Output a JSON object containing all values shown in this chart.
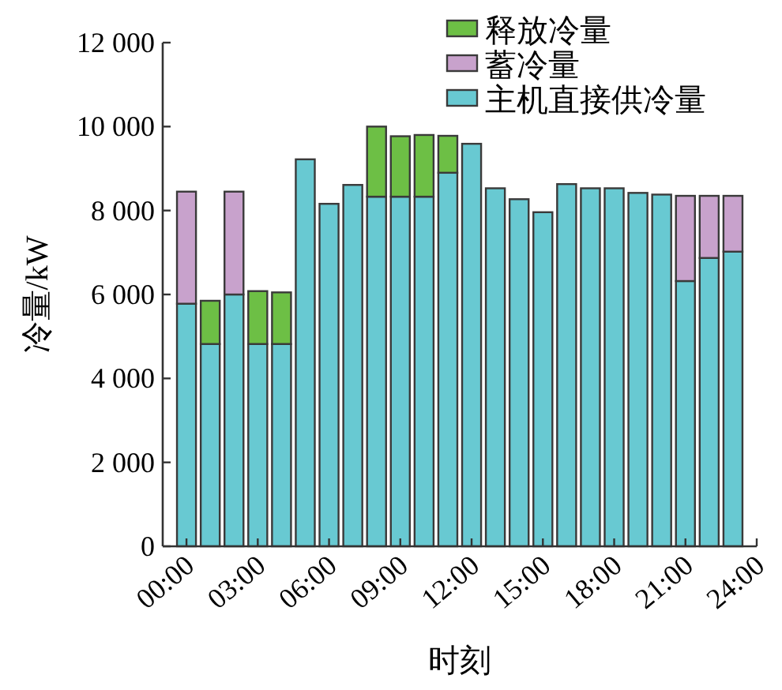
{
  "chart_data": {
    "type": "bar",
    "stacked": true,
    "xlabel": "时刻",
    "ylabel": "冷量/kW",
    "x": [
      0,
      1,
      2,
      3,
      4,
      5,
      6,
      7,
      8,
      9,
      10,
      11,
      12,
      13,
      14,
      15,
      16,
      17,
      18,
      19,
      20,
      21,
      22,
      23
    ],
    "series": [
      {
        "name": "主机直接供冷量",
        "color": "#68c9d2",
        "values": [
          5780,
          4820,
          6000,
          4820,
          4820,
          9220,
          8160,
          8610,
          8330,
          8330,
          8330,
          8900,
          9590,
          8530,
          8270,
          7960,
          8630,
          8530,
          8530,
          8420,
          8380,
          6320,
          6870,
          7020
        ]
      },
      {
        "name": "蓄冷量",
        "color": "#c8a2cc",
        "values": [
          2670,
          null,
          2450,
          null,
          null,
          null,
          null,
          null,
          null,
          null,
          null,
          null,
          null,
          null,
          null,
          null,
          null,
          null,
          null,
          null,
          null,
          2030,
          1480,
          1330
        ]
      },
      {
        "name": "释放冷量",
        "color": "#6dbf45",
        "values": [
          null,
          1030,
          null,
          1260,
          1230,
          null,
          null,
          null,
          1670,
          1440,
          1470,
          880,
          null,
          null,
          null,
          null,
          null,
          null,
          null,
          null,
          null,
          null,
          null,
          null
        ]
      }
    ],
    "xlim": [
      -1,
      24
    ],
    "xticks": [
      {
        "value": 0,
        "label": "00:00"
      },
      {
        "value": 3,
        "label": "03:00"
      },
      {
        "value": 6,
        "label": "06:00"
      },
      {
        "value": 9,
        "label": "09:00"
      },
      {
        "value": 12,
        "label": "12:00"
      },
      {
        "value": 15,
        "label": "15:00"
      },
      {
        "value": 18,
        "label": "18:00"
      },
      {
        "value": 21,
        "label": "21:00"
      },
      {
        "value": 24,
        "label": "24:00"
      }
    ],
    "ylim": [
      0,
      12000
    ],
    "yticks": [
      0,
      {
        "value": 2000,
        "label": "2 000"
      },
      {
        "value": 4000,
        "label": "4 000"
      },
      {
        "value": 6000,
        "label": "6 000"
      },
      {
        "value": 8000,
        "label": "8 000"
      },
      {
        "value": 10000,
        "label": "10 000"
      },
      {
        "value": 12000,
        "label": "12 000"
      }
    ],
    "legend": "top right",
    "grid": false
  }
}
